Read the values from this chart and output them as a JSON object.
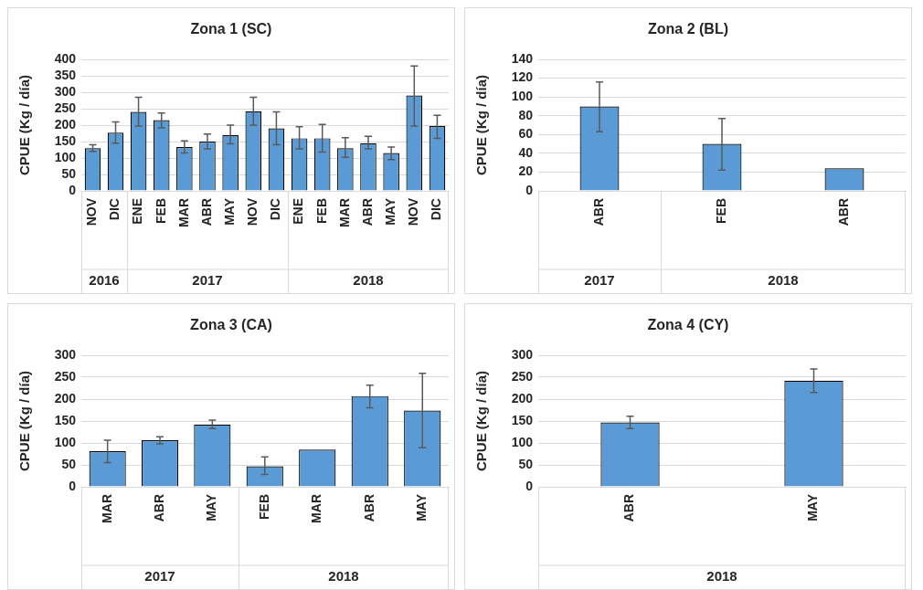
{
  "chart_data": [
    {
      "type": "bar",
      "ylabel": "CPUE (Kg / día)",
      "xlabel": "2016",
      "categories": [
        "NOV",
        "DIC"
      ],
      "values": [
        130,
        177
      ],
      "errors": [
        [
          120,
          140
        ],
        [
          145,
          210
        ]
      ],
      "color": "#5b9bd5",
      "ylim": [
        0,
        400
      ],
      "yticks": [
        0,
        50,
        100,
        150,
        200,
        250,
        300,
        350,
        400
      ],
      "grid": "y"
    },
    {
      "type": "bar",
      "title": "Zona 1 (SC)",
      "xlabel": "2017",
      "categories": [
        "ENE",
        "FEB",
        "MAR",
        "ABR",
        "MAY",
        "NOV",
        "DIC"
      ],
      "values": [
        240,
        215,
        133,
        150,
        170,
        242,
        190
      ],
      "errors": [
        [
          197,
          285
        ],
        [
          192,
          237
        ],
        [
          115,
          152
        ],
        [
          128,
          173
        ],
        [
          143,
          200
        ],
        [
          200,
          285
        ],
        [
          140,
          240
        ]
      ],
      "color": "#5b9bd5",
      "ylim": [
        0,
        400
      ],
      "yticks": [
        0,
        50,
        100,
        150,
        200,
        250,
        300,
        350,
        400
      ],
      "grid": "y",
      "tick_labels": "x"
    },
    {
      "type": "bar",
      "xlabel": "2018",
      "categories": [
        "ENE",
        "FEB",
        "MAR",
        "ABR",
        "MAY",
        "NOV",
        "DIC"
      ],
      "values": [
        160,
        160,
        130,
        145,
        115,
        290,
        197
      ],
      "errors": [
        [
          128,
          195
        ],
        [
          118,
          202
        ],
        [
          102,
          162
        ],
        [
          128,
          166
        ],
        [
          95,
          133
        ],
        [
          197,
          380
        ],
        [
          160,
          230
        ]
      ],
      "color": "#5b9bd5",
      "ylim": [
        0,
        400
      ],
      "yticks": [
        0,
        50,
        100,
        150,
        200,
        250,
        300,
        350,
        400
      ],
      "grid": "y",
      "tick_labels": "x"
    },
    {
      "type": "bar",
      "ylabel": "CPUE (Kg / día)",
      "xlabel": "2017",
      "categories": [
        "ABR"
      ],
      "values": [
        90
      ],
      "errors": [
        [
          63,
          116
        ]
      ],
      "color": "#5b9bd5",
      "ylim": [
        0,
        140
      ],
      "yticks": [
        0,
        20,
        40,
        60,
        80,
        100,
        120,
        140
      ],
      "grid": "y"
    },
    {
      "type": "bar",
      "title": "Zona 2 (BL)",
      "xlabel": "2018",
      "categories": [
        "FEB",
        "ABR"
      ],
      "values": [
        50,
        24
      ],
      "errors": [
        [
          22,
          77
        ],
        null
      ],
      "color": "#5b9bd5",
      "ylim": [
        0,
        140
      ],
      "yticks": [
        0,
        20,
        40,
        60,
        80,
        100,
        120,
        140
      ],
      "grid": "y",
      "tick_labels": "x"
    },
    {
      "type": "bar",
      "title": "Zona 3 (CA)",
      "ylabel": "CPUE (Kg / día)",
      "xlabel": "2017",
      "categories": [
        "MAR",
        "ABR",
        "MAY"
      ],
      "values": [
        81,
        106,
        142
      ],
      "errors": [
        [
          55,
          106
        ],
        [
          98,
          114
        ],
        [
          133,
          152
        ]
      ],
      "color": "#5b9bd5",
      "ylim": [
        0,
        300
      ],
      "yticks": [
        0,
        50,
        100,
        150,
        200,
        250,
        300
      ],
      "grid": "y"
    },
    {
      "type": "bar",
      "xlabel": "2018",
      "categories": [
        "FEB",
        "MAR",
        "ABR",
        "MAY"
      ],
      "values": [
        47,
        85,
        207,
        174
      ],
      "errors": [
        [
          28,
          68
        ],
        null,
        [
          180,
          232
        ],
        [
          89,
          259
        ]
      ],
      "color": "#5b9bd5",
      "ylim": [
        0,
        300
      ],
      "yticks": [
        0,
        50,
        100,
        150,
        200,
        250,
        300
      ],
      "grid": "y",
      "tick_labels": "x"
    },
    {
      "type": "bar",
      "title": "Zona 4 (CY)",
      "ylabel": "CPUE (Kg / día)",
      "xlabel": "2018",
      "categories": [
        "ABR",
        "MAY"
      ],
      "values": [
        147,
        242
      ],
      "errors": [
        [
          133,
          161
        ],
        [
          215,
          269
        ]
      ],
      "color": "#5b9bd5",
      "ylim": [
        0,
        300
      ],
      "yticks": [
        0,
        50,
        100,
        150,
        200,
        250,
        300
      ],
      "grid": "y"
    }
  ]
}
